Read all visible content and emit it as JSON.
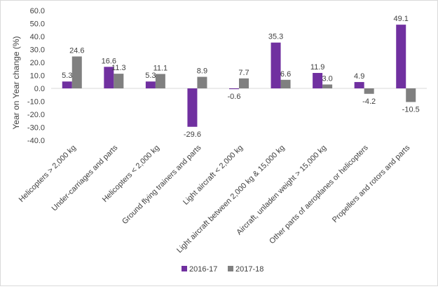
{
  "chart_data": {
    "type": "bar",
    "ylabel": "Year on Year change (%)",
    "ylim": [
      -40,
      60
    ],
    "ytick_step": 10,
    "categories": [
      "Helicopters > 2,000 kg",
      "Under-carriages and parts",
      "Helicopters < 2,000 kg",
      "Ground flying trainers and parts",
      "Light aircraft < 2,000 kg",
      "Light aircraft between 2,000 kg & 15,000 kg",
      "Aircraft, unladen weight > 15,000 kg",
      "Other parts of aeroplanes or helicopters",
      "Propellers and rotors and parts"
    ],
    "series": [
      {
        "name": "2016-17",
        "color": "#7030a0",
        "values": [
          5.3,
          16.6,
          5.3,
          -29.6,
          -0.6,
          35.3,
          11.9,
          4.9,
          49.1
        ]
      },
      {
        "name": "2017-18",
        "color": "#808080",
        "values": [
          24.6,
          11.3,
          11.1,
          8.9,
          7.7,
          6.6,
          3.0,
          -4.2,
          -10.5
        ]
      }
    ],
    "grid": false,
    "legend_position": "bottom"
  }
}
